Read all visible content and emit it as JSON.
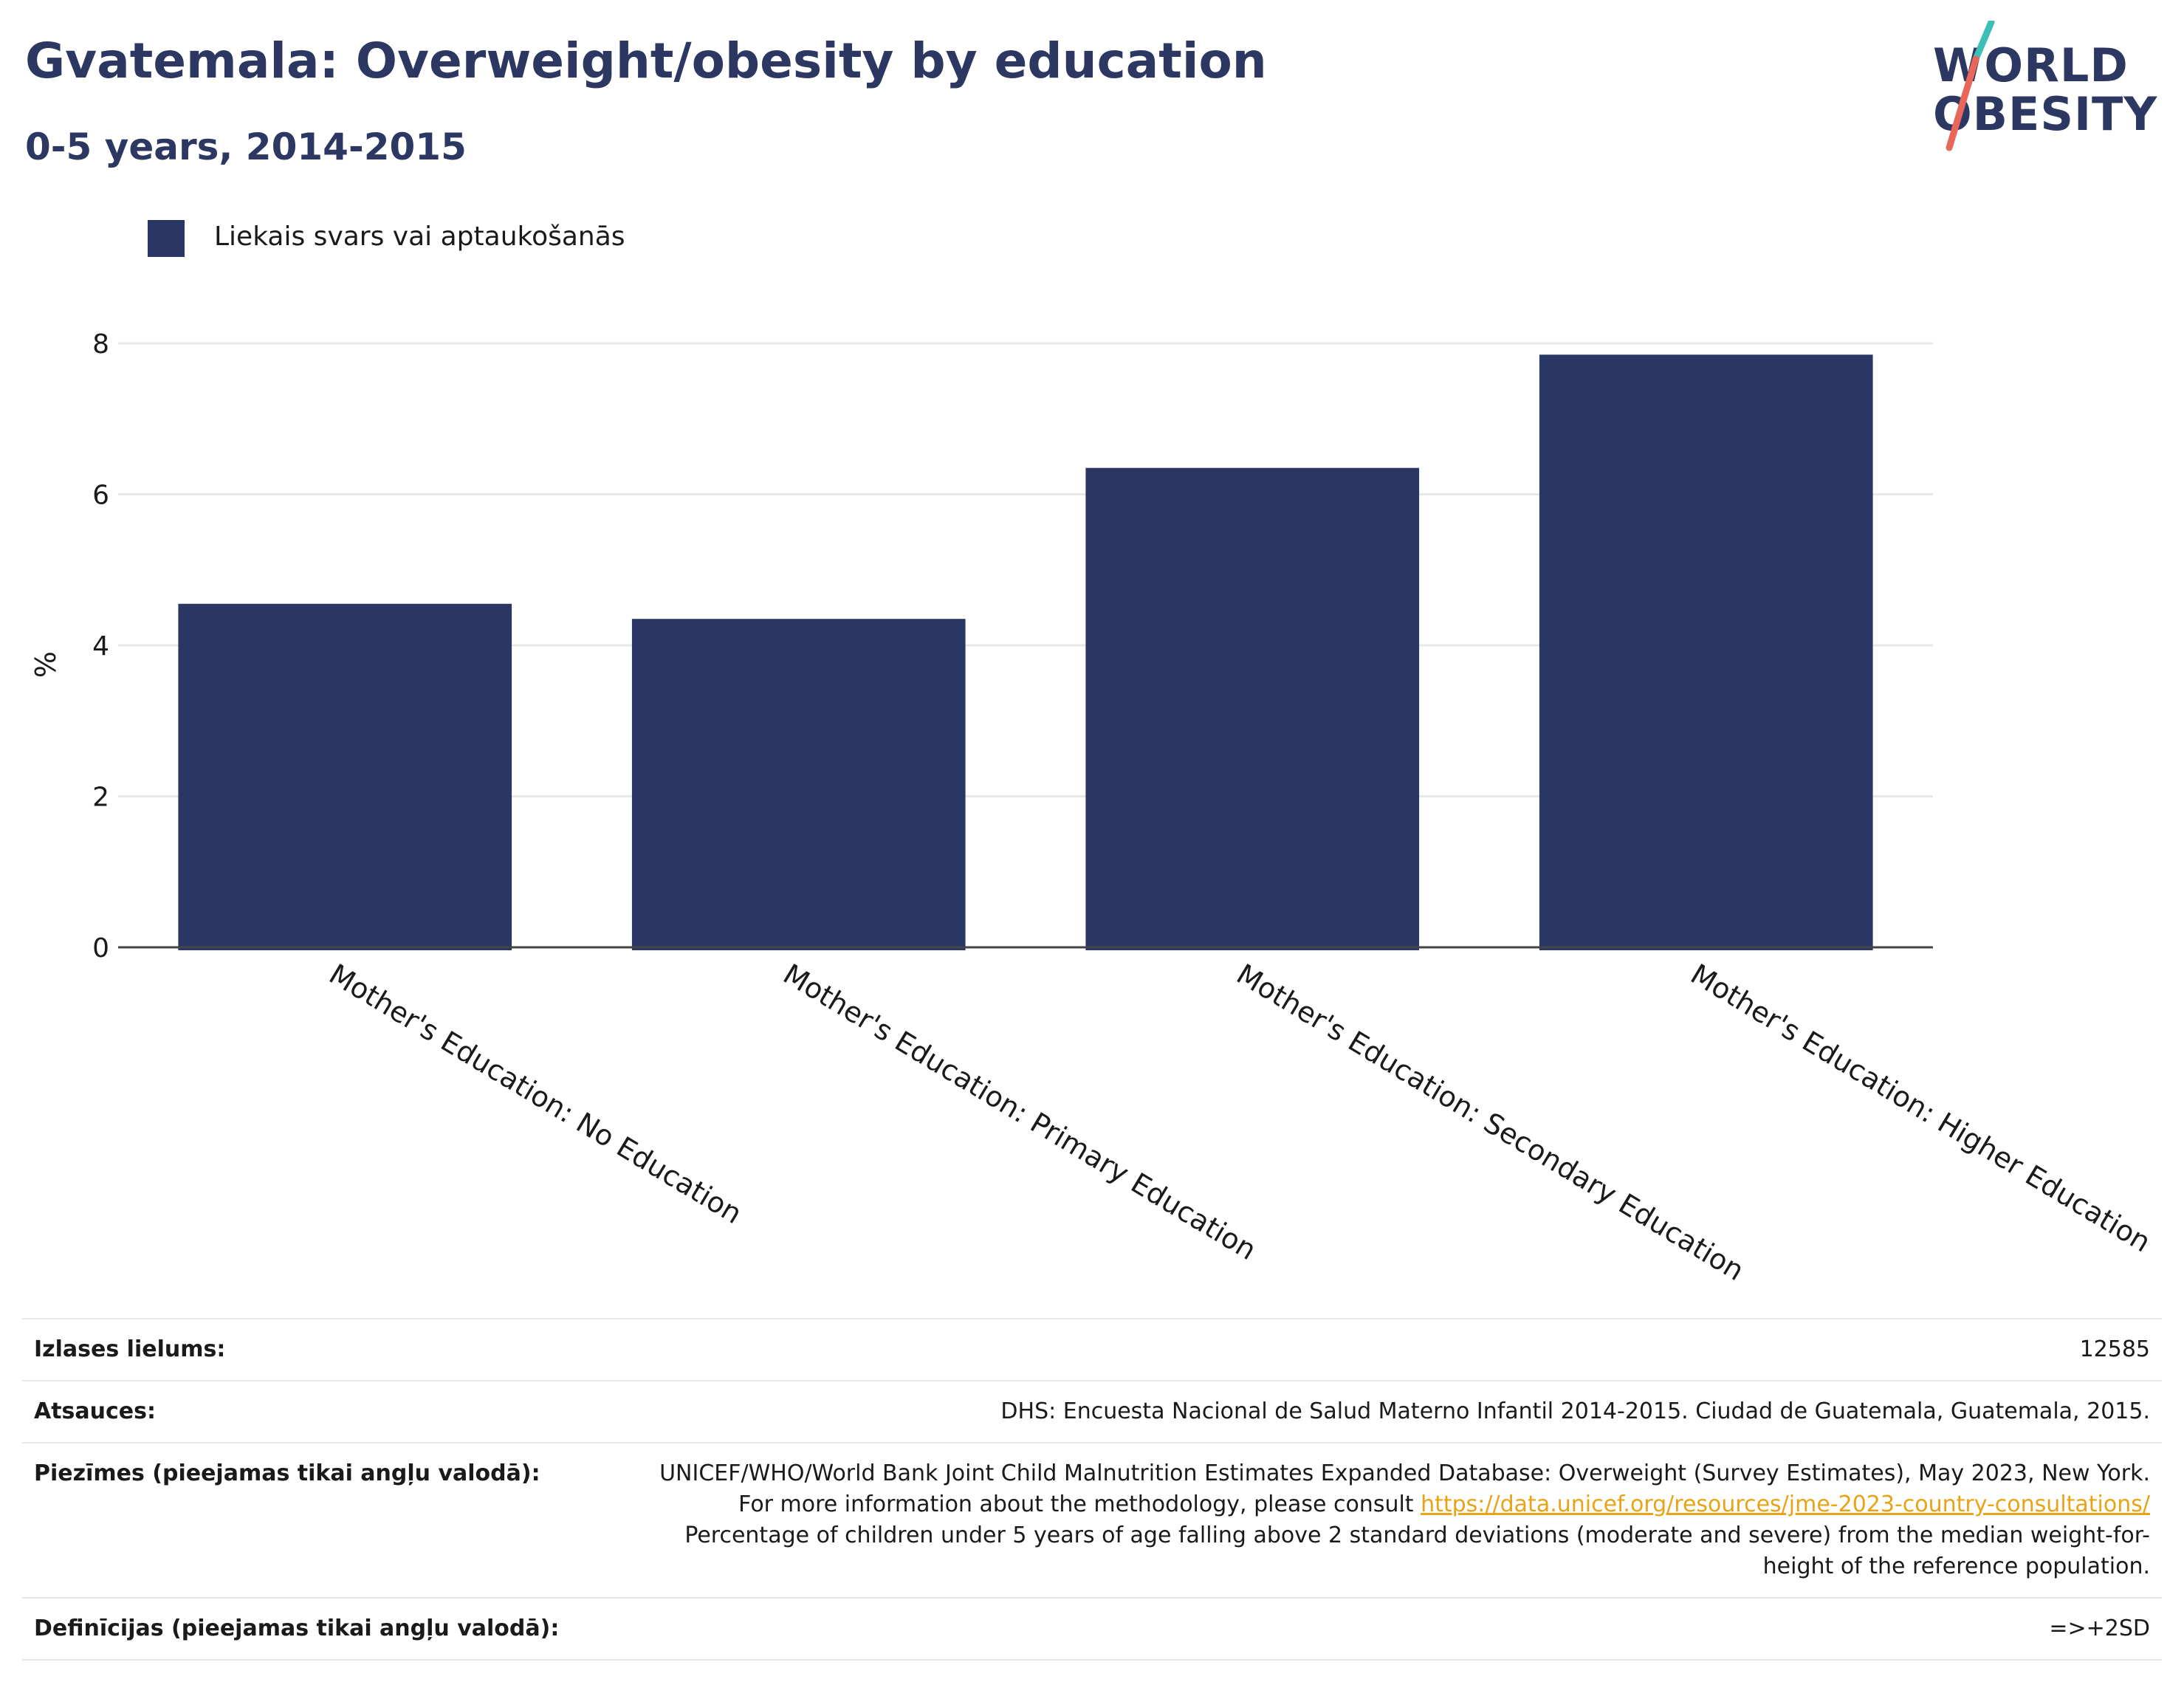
{
  "header": {
    "title": "Gvatemala: Overweight/obesity by education",
    "subtitle": "0-5 years, 2014-2015"
  },
  "logo": {
    "line1": "WORLD",
    "line2": "OBESITY",
    "slash_colors": [
      "#3dbfb8",
      "#e8665a"
    ]
  },
  "colors": {
    "bar": "#2a3663",
    "title": "#2c3762",
    "link": "#e8a317",
    "grid": "#e8e8e8"
  },
  "chart_data": {
    "type": "bar",
    "categories": [
      "Mother's Education: No Education",
      "Mother's Education: Primary Education",
      "Mother's Education: Secondary Education",
      "Mother's Education: Higher Education"
    ],
    "series": [
      {
        "name": "Liekais svars vai aptaukošanās",
        "values": [
          4.55,
          4.35,
          6.35,
          7.85
        ]
      }
    ],
    "ylabel": "%",
    "xlabel": "",
    "ylim": [
      0,
      8
    ],
    "yticks": [
      0,
      2,
      4,
      6,
      8
    ],
    "grid": true,
    "legend_position": "top-left"
  },
  "info": {
    "rows": [
      {
        "key": "Izlases lielums:",
        "value": "12585"
      },
      {
        "key": "Atsauces:",
        "value": "DHS: Encuesta Nacional de Salud Materno Infantil 2014-2015. Ciudad de Guatemala, Guatemala, 2015."
      },
      {
        "key": "Piezīmes (pieejamas tikai angļu valodā):",
        "value_before": "UNICEF/WHO/World Bank Joint Child Malnutrition Estimates Expanded Database: Overweight (Survey Estimates), May 2023, New York. For more information about the methodology, please consult ",
        "link": "https://data.unicef.org/resources/jme-2023-country-consultations/",
        "value_after": " Percentage of children under 5 years of age falling above 2 standard deviations (moderate and severe) from the median weight-for-height of the reference population."
      },
      {
        "key": "Definīcijas (pieejamas tikai angļu valodā):",
        "value": "=>+2SD"
      }
    ]
  }
}
